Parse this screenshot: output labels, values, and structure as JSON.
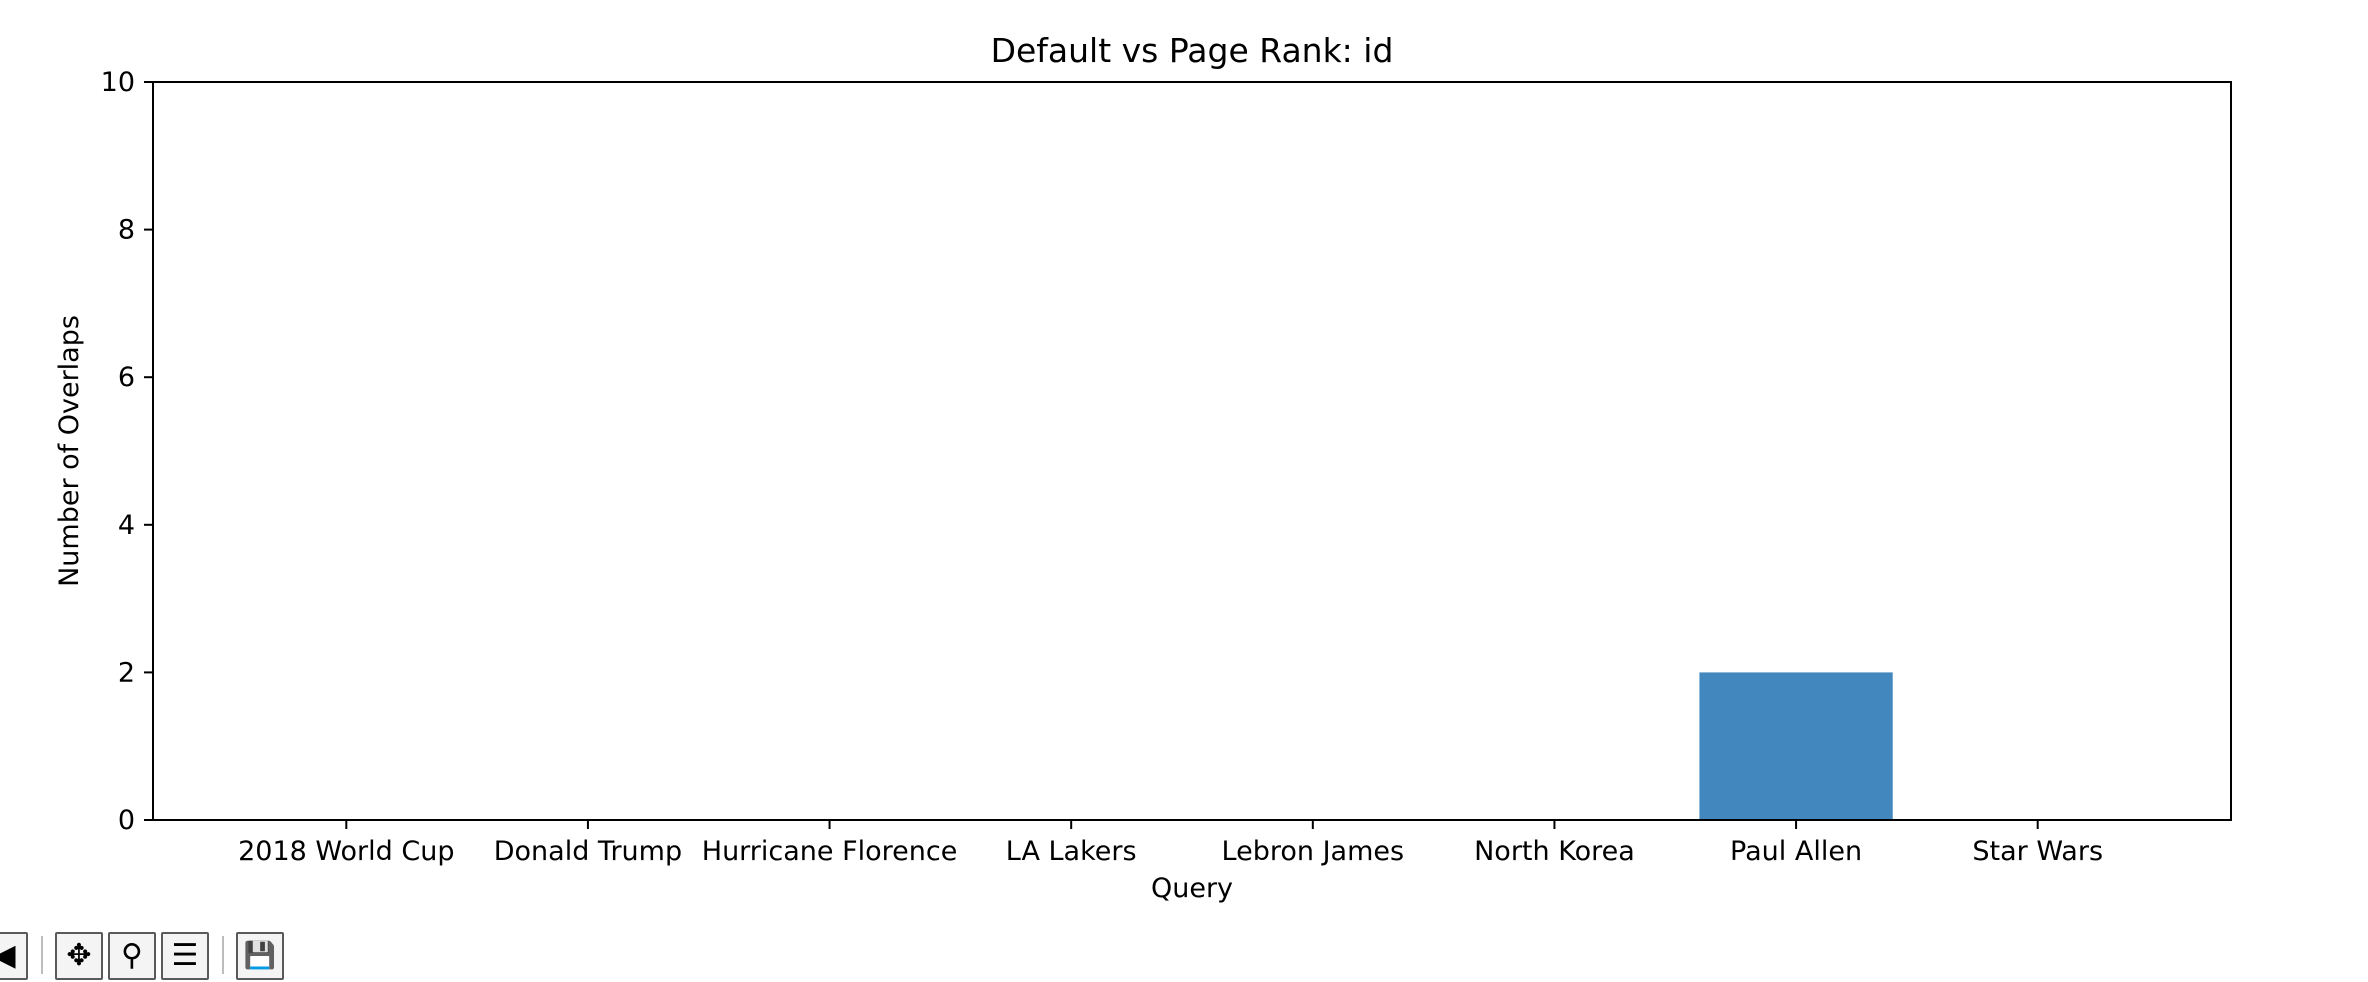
{
  "chart_data": {
    "type": "bar",
    "title": "Default vs Page Rank: id",
    "xlabel": "Query",
    "ylabel": "Number of Overlaps",
    "categories": [
      "2018 World Cup",
      "Donald Trump",
      "Hurricane Florence",
      "LA Lakers",
      "Lebron James",
      "North Korea",
      "Paul Allen",
      "Star Wars"
    ],
    "values": [
      0,
      0,
      0,
      0,
      0,
      0,
      2,
      0
    ],
    "ylim": [
      0,
      10
    ],
    "yticks": [
      0,
      2,
      4,
      6,
      8,
      10
    ],
    "bar_color": "#4287be",
    "grid": false,
    "legend": "none"
  },
  "toolbar": {
    "items": [
      {
        "name": "back-icon",
        "glyph": "◀"
      },
      {
        "name": "pan-icon",
        "glyph": "✥"
      },
      {
        "name": "zoom-icon",
        "glyph": "⚲"
      },
      {
        "name": "configure-subplots-icon",
        "glyph": "☰"
      },
      {
        "name": "save-icon",
        "glyph": "💾"
      }
    ]
  }
}
